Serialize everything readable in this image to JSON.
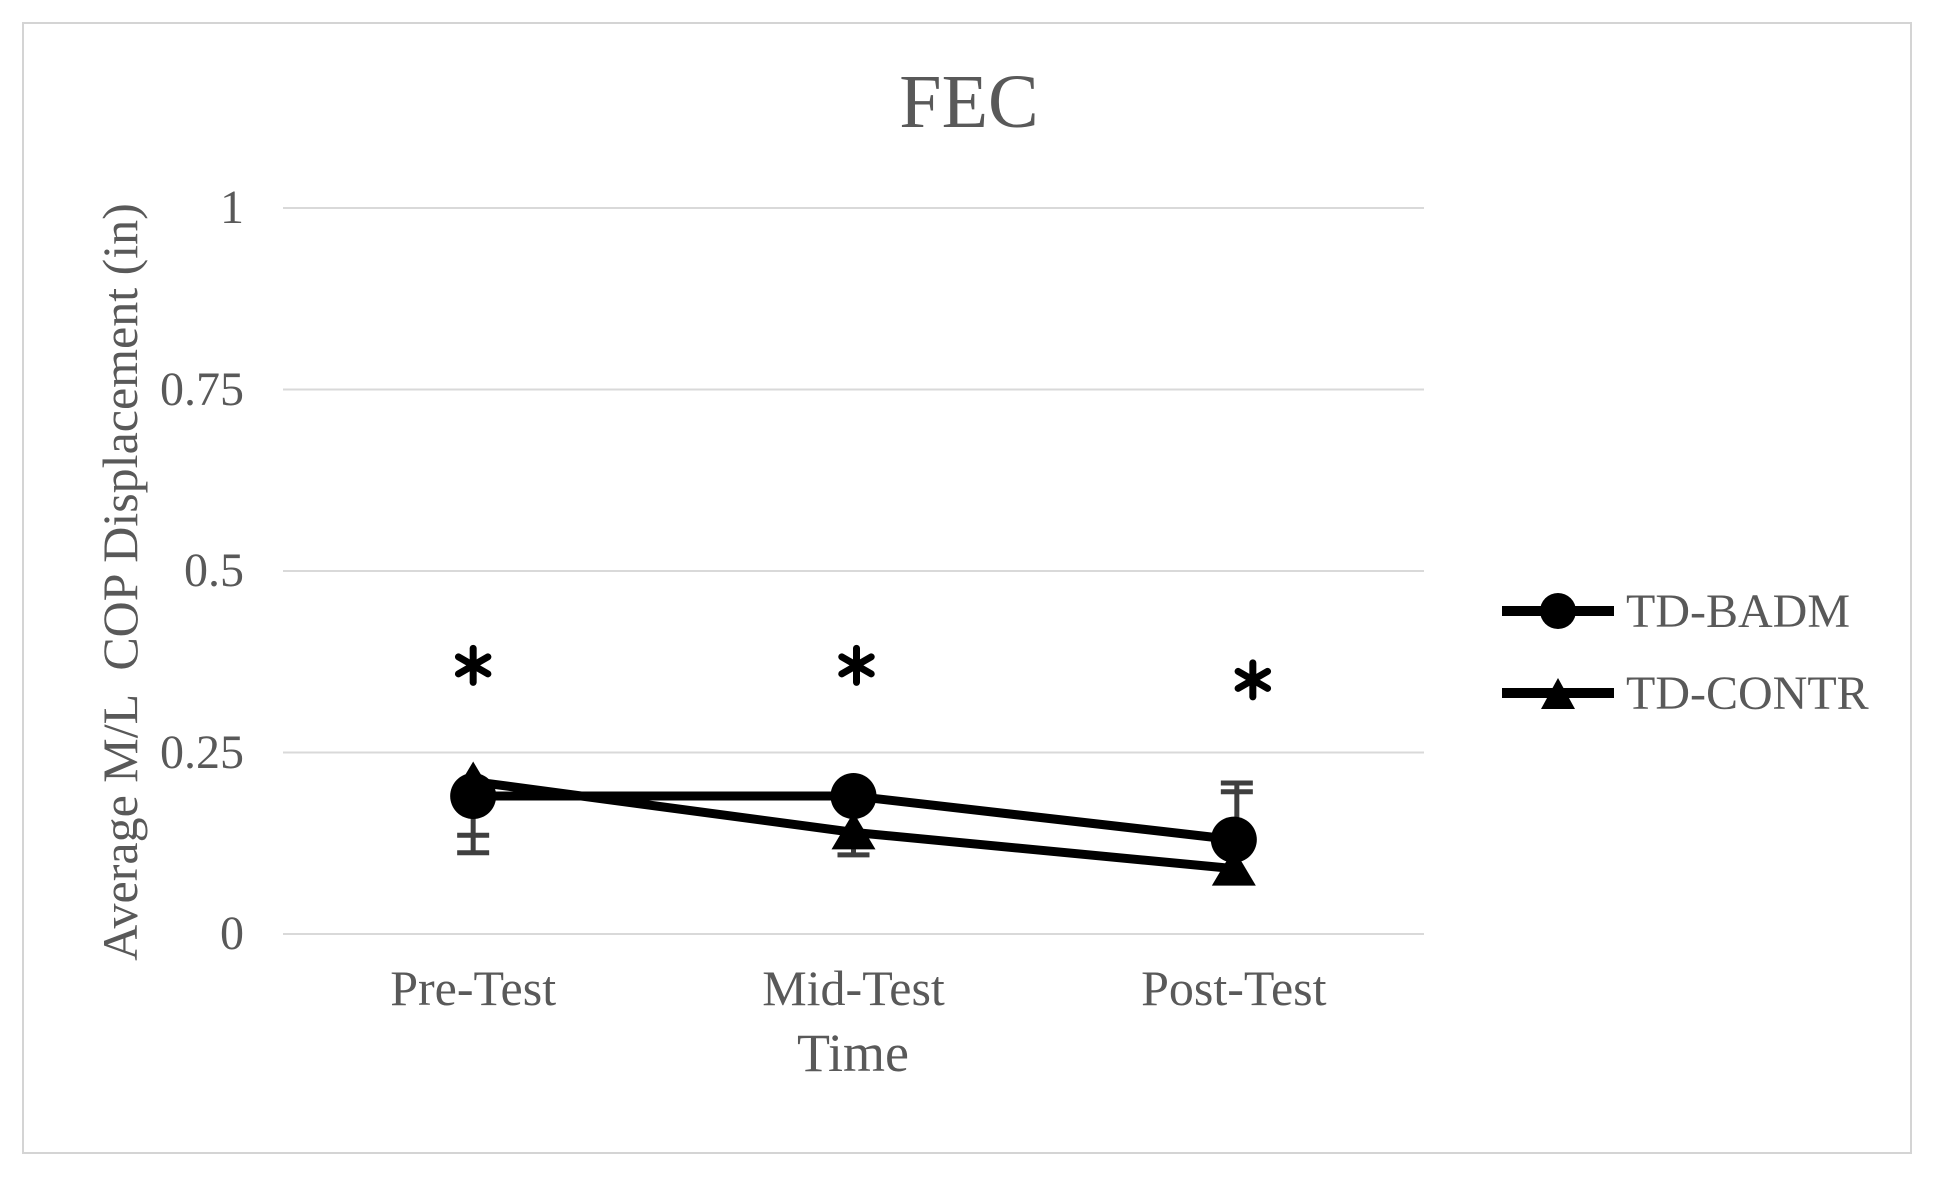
{
  "figure": {
    "title": "FEC",
    "x_axis_title": "Time",
    "y_axis_title": "Average M/L  COP Displacement (in)"
  },
  "legend": {
    "position": "right",
    "items": [
      {
        "label": "TD-BADM",
        "marker": "circle-icon"
      },
      {
        "label": "TD-CONTR",
        "marker": "triangle-icon"
      }
    ]
  },
  "chart_data": {
    "type": "line",
    "title": "FEC",
    "xlabel": "Time",
    "ylabel": "Average M/L  COP Displacement (in)",
    "categories": [
      "Pre-Test",
      "Mid-Test",
      "Post-Test"
    ],
    "series": [
      {
        "name": "TD-BADM",
        "marker": "circle",
        "values": [
          0.19,
          0.19,
          0.13
        ]
      },
      {
        "name": "TD-CONTR",
        "marker": "triangle",
        "values": [
          0.21,
          0.14,
          0.09
        ]
      }
    ],
    "ylim": [
      0,
      1
    ],
    "yticks": [
      0,
      0.25,
      0.5,
      0.75,
      1
    ],
    "ytick_labels": [
      "0",
      "0.25",
      "0.5",
      "0.75",
      "1"
    ],
    "grid": "horizontal",
    "legend_position": "right",
    "error_bars": [
      {
        "category": "Pre-Test",
        "direction": "down",
        "from": 0.19,
        "to": 0.112,
        "caps": [
          0.136,
          0.112
        ]
      },
      {
        "category": "Mid-Test",
        "direction": "down",
        "from": 0.14,
        "to": 0.109,
        "caps": [
          0.109
        ]
      },
      {
        "category": "Post-Test",
        "direction": "up",
        "from": 0.13,
        "to": 0.208,
        "caps": [
          0.196,
          0.208
        ]
      }
    ],
    "annotations": [
      {
        "symbol": "*",
        "category": "Pre-Test",
        "value": 0.37,
        "dx": 0
      },
      {
        "symbol": "*",
        "category": "Mid-Test",
        "value": 0.37,
        "dx": 3
      },
      {
        "symbol": "*",
        "category": "Post-Test",
        "value": 0.35,
        "dx": 19
      }
    ],
    "colors": {
      "series": "#000000",
      "text": "#595959",
      "gridline": "#d9d9d9",
      "error_bar": "#3f3f3f",
      "border": "#d4d4d4",
      "annotation": "#000000"
    }
  }
}
